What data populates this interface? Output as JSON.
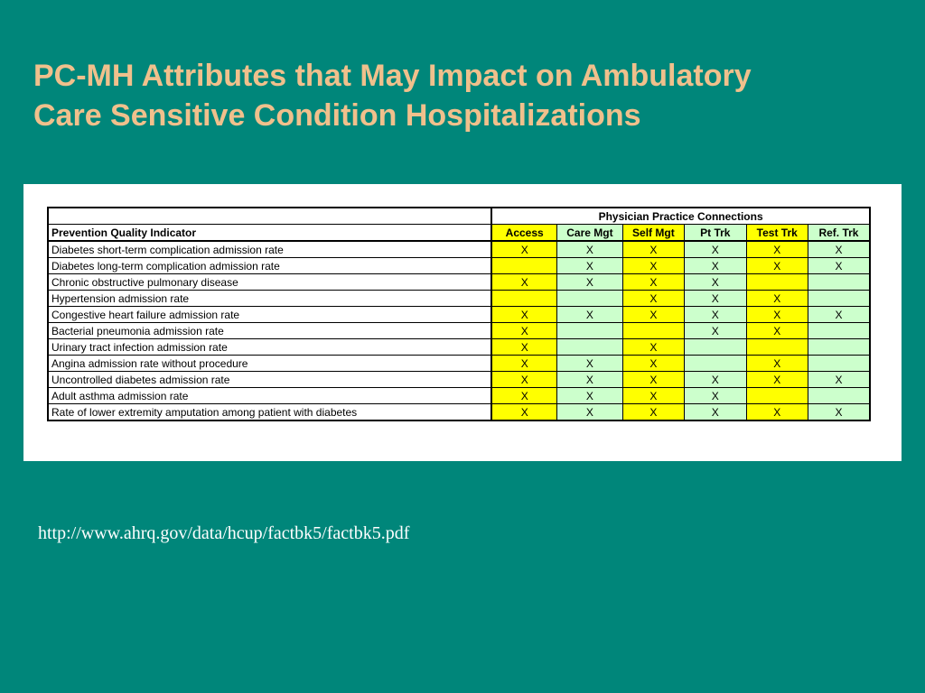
{
  "title": {
    "line1": "PC-MH Attributes that May Impact on Ambulatory",
    "line2": "Care Sensitive Condition Hospitalizations"
  },
  "table": {
    "group_header": "Physician Practice Connections",
    "first_col_header": "Prevention Quality Indicator",
    "columns": [
      "Access",
      "Care Mgt",
      "Self Mgt",
      "Pt Trk",
      "Test Trk",
      "Ref. Trk"
    ],
    "column_colors": [
      "#ffff00",
      "#ccffcc",
      "#ffff00",
      "#ccffcc",
      "#ffff00",
      "#ccffcc"
    ],
    "rows": [
      {
        "indicator": "Diabetes short-term complication admission rate",
        "marks": [
          "X",
          "X",
          "X",
          "X",
          "X",
          "X"
        ]
      },
      {
        "indicator": "Diabetes long-term complication admission rate",
        "marks": [
          "",
          "X",
          "X",
          "X",
          "X",
          "X"
        ]
      },
      {
        "indicator": "Chronic obstructive pulmonary disease",
        "marks": [
          "X",
          "X",
          "X",
          "X",
          "",
          ""
        ]
      },
      {
        "indicator": "Hypertension admission rate",
        "marks": [
          "",
          "",
          "X",
          "X",
          "X",
          ""
        ]
      },
      {
        "indicator": "Congestive heart failure admission rate",
        "marks": [
          "X",
          "X",
          "X",
          "X",
          "X",
          "X"
        ]
      },
      {
        "indicator": "Bacterial pneumonia admission rate",
        "marks": [
          "X",
          "",
          "",
          "X",
          "X",
          ""
        ]
      },
      {
        "indicator": "Urinary tract infection admission rate",
        "marks": [
          "X",
          "",
          "X",
          "",
          "",
          ""
        ]
      },
      {
        "indicator": "Angina admission rate without procedure",
        "marks": [
          "X",
          "X",
          "X",
          "",
          "X",
          ""
        ]
      },
      {
        "indicator": "Uncontrolled diabetes admission rate",
        "marks": [
          "X",
          "X",
          "X",
          "X",
          "X",
          "X"
        ]
      },
      {
        "indicator": "Adult asthma admission rate",
        "marks": [
          "X",
          "X",
          "X",
          "X",
          "",
          ""
        ]
      },
      {
        "indicator": "Rate of lower extremity amputation among patient with diabetes",
        "marks": [
          "X",
          "X",
          "X",
          "X",
          "X",
          "X"
        ]
      }
    ]
  },
  "source_url": "http://www.ahrq.gov/data/hcup/factbk5/factbk5.pdf",
  "colors": {
    "background": "#00867a",
    "title": "#f0c08c",
    "highlight_yellow": "#ffff00",
    "highlight_green": "#ccffcc"
  }
}
